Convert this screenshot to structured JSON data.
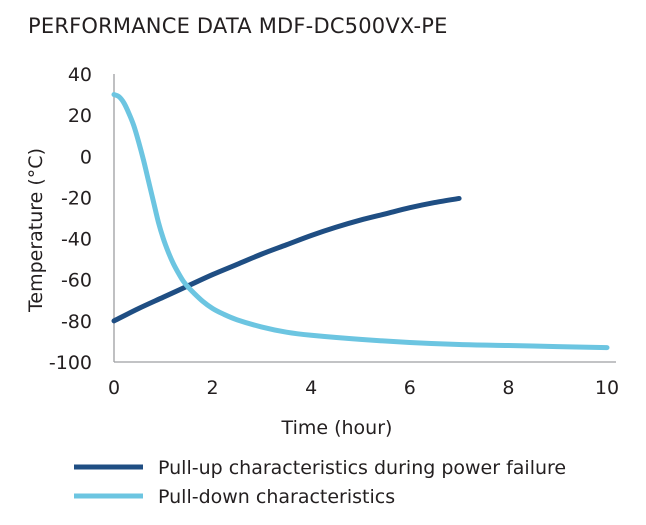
{
  "chart_data": {
    "type": "line",
    "title": "PERFORMANCE DATA MDF-DC500VX-PE",
    "xlabel": "Time (hour)",
    "ylabel": "Temperature (°C)",
    "xlim": [
      0,
      10
    ],
    "ylim": [
      -100,
      40
    ],
    "x_ticks": [
      0,
      2,
      4,
      6,
      8,
      10
    ],
    "y_ticks": [
      40,
      20,
      0,
      -20,
      -40,
      -60,
      -80,
      -100
    ],
    "grid": false,
    "legend_position": "bottom",
    "series": [
      {
        "name": "Pull-up characteristics during power failure",
        "color": "#1f4e83",
        "x": [
          0,
          0.5,
          1,
          1.5,
          2,
          2.5,
          3,
          3.5,
          4,
          4.5,
          5,
          5.5,
          6,
          6.5,
          7
        ],
        "y": [
          -80,
          -74,
          -68.5,
          -63,
          -57.5,
          -52.5,
          -47.5,
          -43,
          -38.5,
          -34.5,
          -31,
          -28,
          -25,
          -22.5,
          -20.5
        ]
      },
      {
        "name": "Pull-down characteristics",
        "color": "#6cc5e1",
        "x": [
          0,
          0.1,
          0.2,
          0.3,
          0.4,
          0.5,
          0.6,
          0.7,
          0.8,
          0.9,
          1.0,
          1.1,
          1.2,
          1.3,
          1.4,
          1.5,
          1.6,
          1.8,
          2,
          2.2,
          2.5,
          3,
          3.5,
          4,
          5,
          6,
          7,
          8,
          9,
          10
        ],
        "y": [
          30,
          29,
          26,
          21,
          15,
          7,
          -2,
          -12,
          -22,
          -32,
          -40,
          -46.5,
          -52,
          -56.5,
          -60.5,
          -63.5,
          -66,
          -70.5,
          -74,
          -76.5,
          -79.5,
          -83,
          -85.5,
          -87,
          -89,
          -90.5,
          -91.5,
          -92,
          -92.5,
          -93
        ]
      }
    ]
  }
}
